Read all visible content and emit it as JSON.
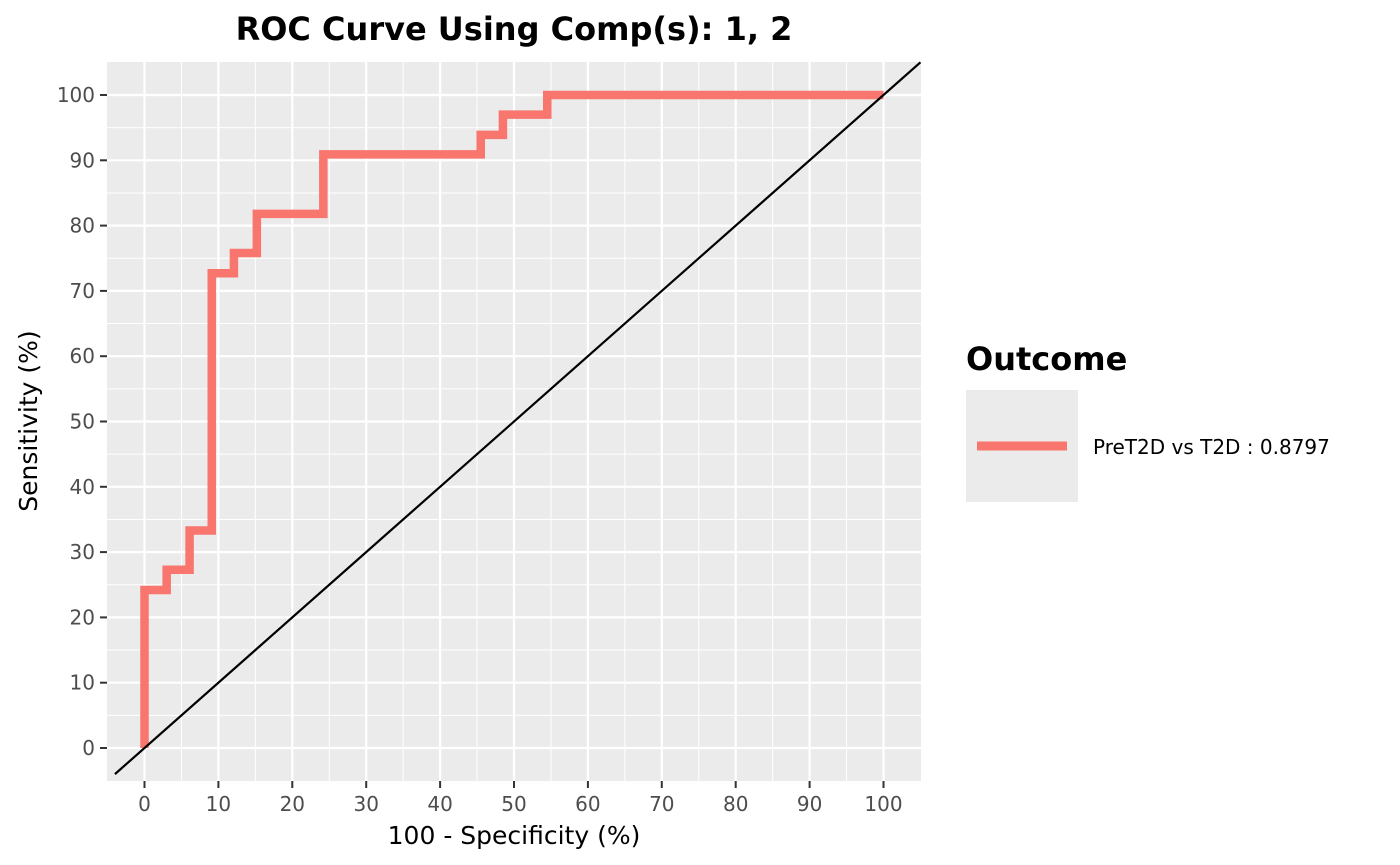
{
  "chart_data": {
    "type": "line",
    "title": "ROC Curve Using Comp(s): 1, 2",
    "xlabel": "100 - Specificity (%)",
    "ylabel": "Sensitivity (%)",
    "xlim": [
      -5.5,
      105
    ],
    "ylim": [
      -4,
      105
    ],
    "x_ticks": [
      0,
      10,
      20,
      30,
      40,
      50,
      60,
      70,
      80,
      90,
      100
    ],
    "x_tick_labels": [
      "0",
      "10",
      "20",
      "30",
      "40",
      "50",
      "60",
      "70",
      "80",
      "90",
      "100"
    ],
    "y_ticks": [
      0,
      10,
      20,
      30,
      40,
      50,
      60,
      70,
      80,
      90,
      100
    ],
    "y_tick_labels": [
      "0",
      "10",
      "20",
      "30",
      "40",
      "50",
      "60",
      "70",
      "80",
      "90",
      "100"
    ],
    "grid": true,
    "legend": {
      "title": "Outcome",
      "position": "right"
    },
    "series": [
      {
        "name": "PreT2D vs T2D : 0.8797",
        "color": "#F8766D",
        "style": "step",
        "points": [
          [
            0,
            0
          ],
          [
            0,
            24.2
          ],
          [
            3,
            24.2
          ],
          [
            3,
            27.3
          ],
          [
            6.1,
            27.3
          ],
          [
            6.1,
            33.3
          ],
          [
            9.1,
            33.3
          ],
          [
            9.1,
            72.7
          ],
          [
            12.1,
            72.7
          ],
          [
            12.1,
            75.8
          ],
          [
            15.2,
            75.8
          ],
          [
            15.2,
            81.8
          ],
          [
            24.2,
            81.8
          ],
          [
            24.2,
            90.9
          ],
          [
            45.5,
            90.9
          ],
          [
            45.5,
            93.9
          ],
          [
            48.5,
            93.9
          ],
          [
            48.5,
            97
          ],
          [
            54.5,
            97
          ],
          [
            54.5,
            100
          ],
          [
            100,
            100
          ]
        ]
      }
    ],
    "reference_line": {
      "type": "diagonal",
      "from": [
        0,
        0
      ],
      "to": [
        100,
        100
      ],
      "color": "#000000"
    }
  }
}
